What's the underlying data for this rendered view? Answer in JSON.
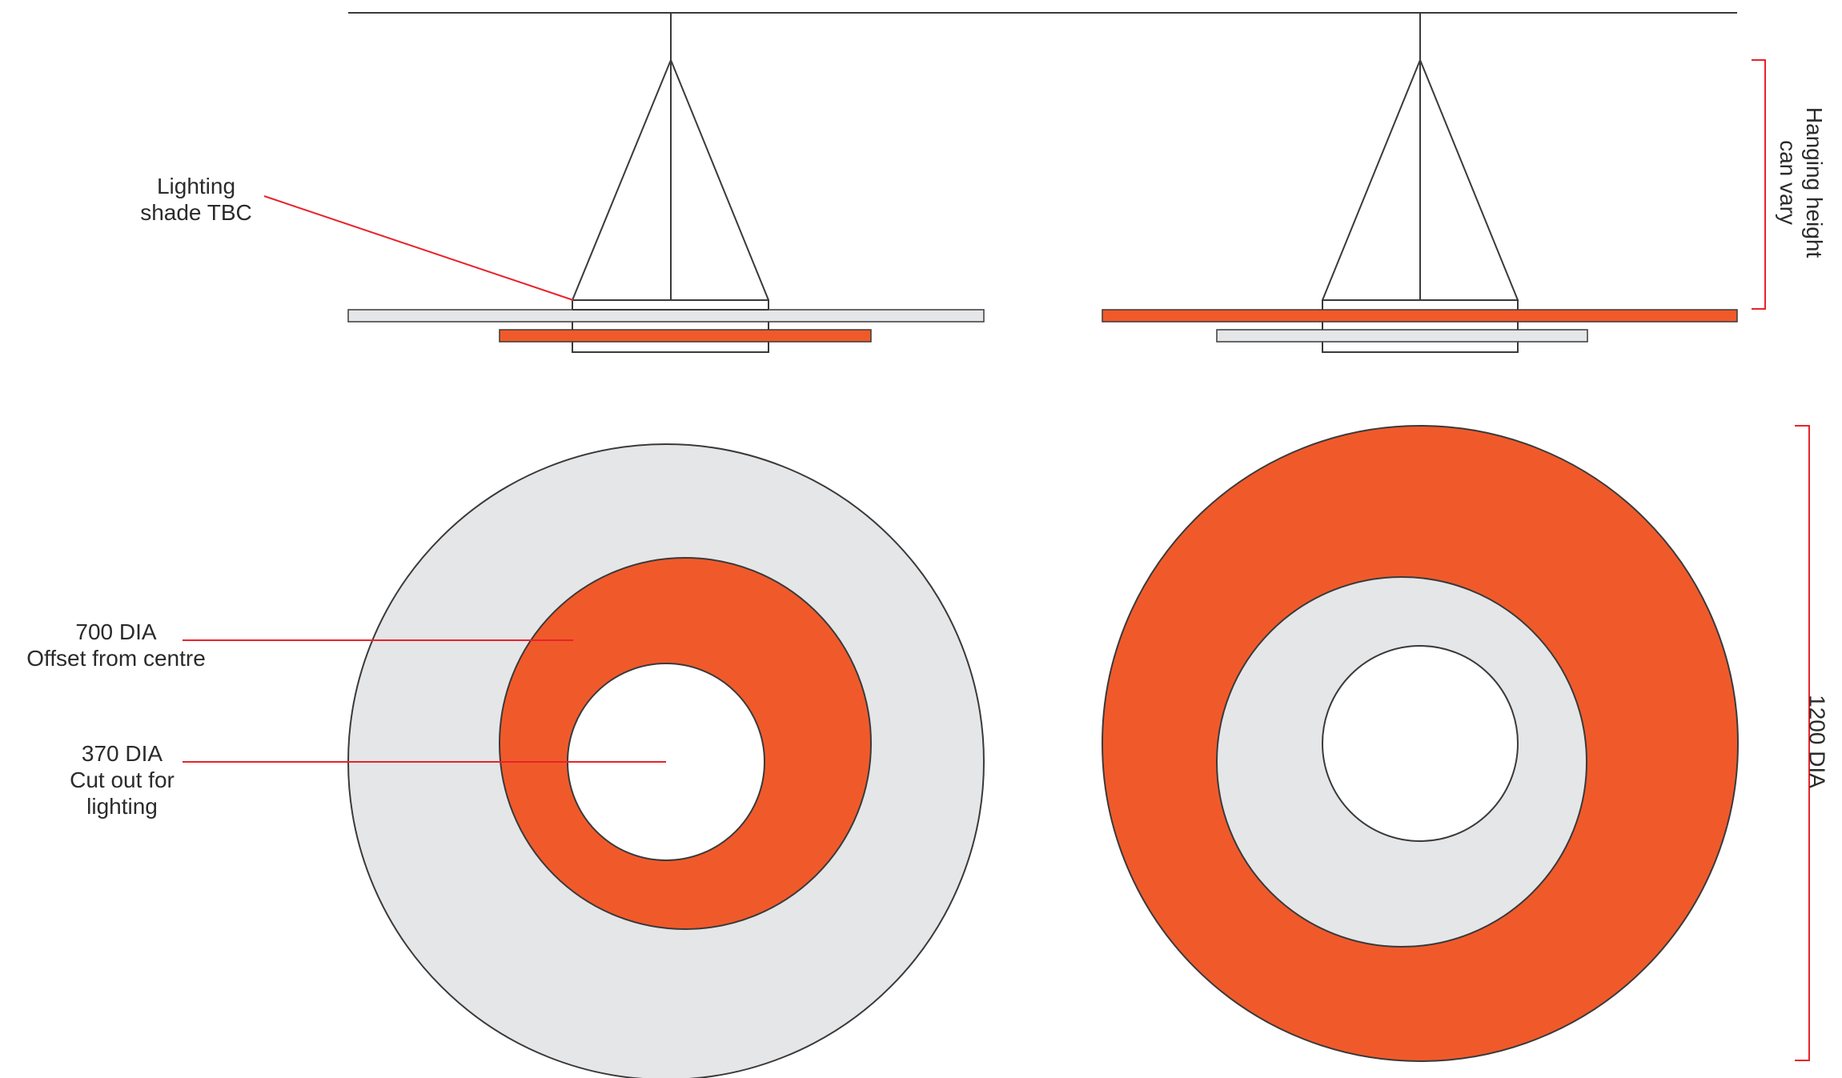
{
  "colors": {
    "orange": "#F05A2B",
    "grey": "#E5E6E8",
    "line": "#3a3a3a",
    "leader": "#E8232A"
  },
  "labels": {
    "lighting_shade": [
      "Lighting",
      "shade TBC"
    ],
    "offset": [
      "700 DIA",
      "Offset from centre"
    ],
    "cutout": [
      "370 DIA",
      "Cut out for",
      "lighting"
    ],
    "hanging": [
      "Hanging height",
      "can vary"
    ],
    "diameter": "1200 DIA"
  }
}
